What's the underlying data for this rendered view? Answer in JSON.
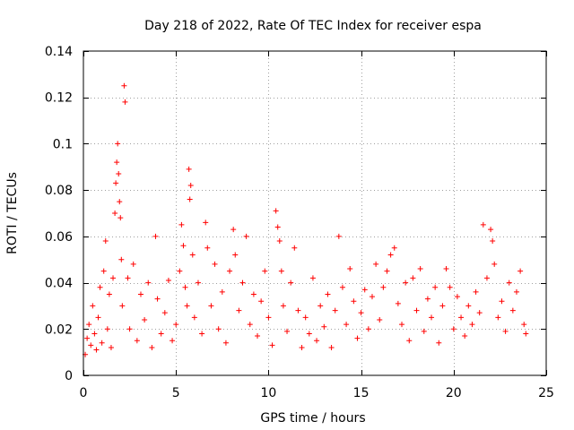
{
  "chart_data": {
    "type": "scatter",
    "title": "Day 218 of 2022, Rate Of TEC Index for receiver espa",
    "xlabel": "GPS time / hours",
    "ylabel": "ROTI / TECUs",
    "xlim": [
      0,
      25
    ],
    "ylim": [
      0,
      0.14
    ],
    "xticks": [
      0,
      5,
      10,
      15,
      20,
      25
    ],
    "xtick_labels": [
      "0",
      "5",
      "10",
      "15",
      "20",
      "25"
    ],
    "yticks": [
      0,
      0.02,
      0.04,
      0.06,
      0.08,
      0.1,
      0.12,
      0.14
    ],
    "ytick_labels": [
      "0",
      "0.02",
      "0.04",
      "0.06",
      "0.08",
      "0.1",
      "0.12",
      "0.14"
    ],
    "grid": true,
    "marker": "+",
    "color": "#ff0000",
    "series": [
      {
        "name": "ROTI",
        "points": [
          [
            0.1,
            0.009
          ],
          [
            0.2,
            0.016
          ],
          [
            0.3,
            0.022
          ],
          [
            0.4,
            0.013
          ],
          [
            0.5,
            0.03
          ],
          [
            0.6,
            0.018
          ],
          [
            0.7,
            0.011
          ],
          [
            0.8,
            0.025
          ],
          [
            0.9,
            0.038
          ],
          [
            1.0,
            0.014
          ],
          [
            1.1,
            0.045
          ],
          [
            1.2,
            0.058
          ],
          [
            1.3,
            0.02
          ],
          [
            1.4,
            0.035
          ],
          [
            1.5,
            0.012
          ],
          [
            1.6,
            0.042
          ],
          [
            1.7,
            0.07
          ],
          [
            1.75,
            0.083
          ],
          [
            1.8,
            0.092
          ],
          [
            1.85,
            0.1
          ],
          [
            1.9,
            0.087
          ],
          [
            1.95,
            0.075
          ],
          [
            2.0,
            0.068
          ],
          [
            2.05,
            0.05
          ],
          [
            2.1,
            0.03
          ],
          [
            2.2,
            0.125
          ],
          [
            2.25,
            0.118
          ],
          [
            2.4,
            0.042
          ],
          [
            2.5,
            0.02
          ],
          [
            2.7,
            0.048
          ],
          [
            2.9,
            0.015
          ],
          [
            3.1,
            0.035
          ],
          [
            3.3,
            0.024
          ],
          [
            3.5,
            0.04
          ],
          [
            3.7,
            0.012
          ],
          [
            3.9,
            0.06
          ],
          [
            4.0,
            0.033
          ],
          [
            4.2,
            0.018
          ],
          [
            4.4,
            0.027
          ],
          [
            4.6,
            0.041
          ],
          [
            4.8,
            0.015
          ],
          [
            5.0,
            0.022
          ],
          [
            5.2,
            0.045
          ],
          [
            5.3,
            0.065
          ],
          [
            5.4,
            0.056
          ],
          [
            5.5,
            0.038
          ],
          [
            5.6,
            0.03
          ],
          [
            5.7,
            0.089
          ],
          [
            5.75,
            0.076
          ],
          [
            5.8,
            0.082
          ],
          [
            5.9,
            0.052
          ],
          [
            6.0,
            0.025
          ],
          [
            6.2,
            0.04
          ],
          [
            6.4,
            0.018
          ],
          [
            6.6,
            0.066
          ],
          [
            6.7,
            0.055
          ],
          [
            6.9,
            0.03
          ],
          [
            7.1,
            0.048
          ],
          [
            7.3,
            0.02
          ],
          [
            7.5,
            0.036
          ],
          [
            7.7,
            0.014
          ],
          [
            7.9,
            0.045
          ],
          [
            8.1,
            0.063
          ],
          [
            8.2,
            0.052
          ],
          [
            8.4,
            0.028
          ],
          [
            8.6,
            0.04
          ],
          [
            8.8,
            0.06
          ],
          [
            9.0,
            0.022
          ],
          [
            9.2,
            0.035
          ],
          [
            9.4,
            0.017
          ],
          [
            9.6,
            0.032
          ],
          [
            9.8,
            0.045
          ],
          [
            10.0,
            0.025
          ],
          [
            10.2,
            0.013
          ],
          [
            10.4,
            0.071
          ],
          [
            10.5,
            0.064
          ],
          [
            10.6,
            0.058
          ],
          [
            10.7,
            0.045
          ],
          [
            10.8,
            0.03
          ],
          [
            11.0,
            0.019
          ],
          [
            11.2,
            0.04
          ],
          [
            11.4,
            0.055
          ],
          [
            11.6,
            0.028
          ],
          [
            11.8,
            0.012
          ],
          [
            12.0,
            0.025
          ],
          [
            12.2,
            0.018
          ],
          [
            12.4,
            0.042
          ],
          [
            12.6,
            0.015
          ],
          [
            12.8,
            0.03
          ],
          [
            13.0,
            0.021
          ],
          [
            13.2,
            0.035
          ],
          [
            13.4,
            0.012
          ],
          [
            13.6,
            0.028
          ],
          [
            13.8,
            0.06
          ],
          [
            14.0,
            0.038
          ],
          [
            14.2,
            0.022
          ],
          [
            14.4,
            0.046
          ],
          [
            14.6,
            0.032
          ],
          [
            14.8,
            0.016
          ],
          [
            15.0,
            0.027
          ],
          [
            15.2,
            0.037
          ],
          [
            15.4,
            0.02
          ],
          [
            15.6,
            0.034
          ],
          [
            15.8,
            0.048
          ],
          [
            16.0,
            0.024
          ],
          [
            16.2,
            0.038
          ],
          [
            16.4,
            0.045
          ],
          [
            16.6,
            0.052
          ],
          [
            16.8,
            0.055
          ],
          [
            17.0,
            0.031
          ],
          [
            17.2,
            0.022
          ],
          [
            17.4,
            0.04
          ],
          [
            17.6,
            0.015
          ],
          [
            17.8,
            0.042
          ],
          [
            18.0,
            0.028
          ],
          [
            18.2,
            0.046
          ],
          [
            18.4,
            0.019
          ],
          [
            18.6,
            0.033
          ],
          [
            18.8,
            0.025
          ],
          [
            19.0,
            0.038
          ],
          [
            19.2,
            0.014
          ],
          [
            19.4,
            0.03
          ],
          [
            19.6,
            0.046
          ],
          [
            19.8,
            0.038
          ],
          [
            20.0,
            0.02
          ],
          [
            20.2,
            0.034
          ],
          [
            20.4,
            0.025
          ],
          [
            20.6,
            0.017
          ],
          [
            20.8,
            0.03
          ],
          [
            21.0,
            0.022
          ],
          [
            21.2,
            0.036
          ],
          [
            21.4,
            0.027
          ],
          [
            21.6,
            0.065
          ],
          [
            21.8,
            0.042
          ],
          [
            22.0,
            0.063
          ],
          [
            22.1,
            0.058
          ],
          [
            22.2,
            0.048
          ],
          [
            22.4,
            0.025
          ],
          [
            22.6,
            0.032
          ],
          [
            22.8,
            0.019
          ],
          [
            23.0,
            0.04
          ],
          [
            23.2,
            0.028
          ],
          [
            23.4,
            0.036
          ],
          [
            23.6,
            0.045
          ],
          [
            23.8,
            0.022
          ],
          [
            23.9,
            0.018
          ]
        ]
      }
    ]
  }
}
